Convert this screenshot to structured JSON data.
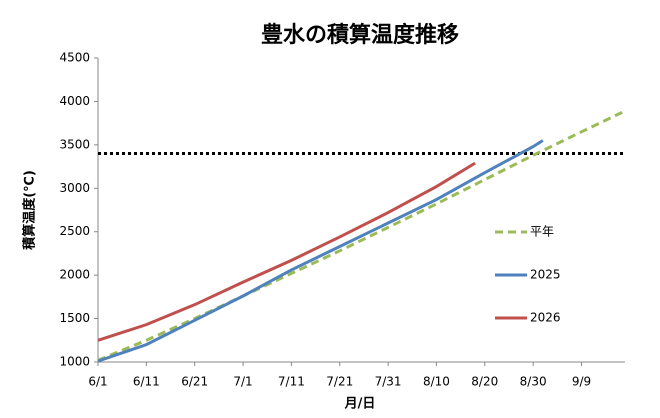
{
  "chart_data": {
    "type": "line",
    "title": "豊水の積算温度推移",
    "y_label": "積算温度(℃)",
    "x_label": "月/日",
    "xlim": [
      0,
      109
    ],
    "ylim": [
      1000,
      4500
    ],
    "xticks": [
      {
        "value": 0,
        "label": "6/1"
      },
      {
        "value": 10,
        "label": "6/11"
      },
      {
        "value": 20,
        "label": "6/21"
      },
      {
        "value": 30,
        "label": "7/1"
      },
      {
        "value": 40,
        "label": "7/11"
      },
      {
        "value": 50,
        "label": "7/21"
      },
      {
        "value": 60,
        "label": "7/31"
      },
      {
        "value": 70,
        "label": "8/10"
      },
      {
        "value": 80,
        "label": "8/20"
      },
      {
        "value": 90,
        "label": "8/30"
      },
      {
        "value": 100,
        "label": "9/9"
      }
    ],
    "yticks": [
      1000,
      1500,
      2000,
      2500,
      3000,
      3500,
      4000,
      4500
    ],
    "reference_line": 3400,
    "legend": "right",
    "series": [
      {
        "name": "平年",
        "color": "#9bbb59",
        "line_style": "dashed",
        "x": [
          0,
          10,
          20,
          30,
          40,
          50,
          60,
          70,
          80,
          90,
          100,
          109
        ],
        "values": [
          1020,
          1250,
          1500,
          1760,
          2020,
          2280,
          2550,
          2820,
          3100,
          3380,
          3650,
          3890
        ]
      },
      {
        "name": "2025",
        "color": "#4f81bd",
        "line_style": "solid",
        "x": [
          0,
          10,
          20,
          30,
          40,
          50,
          60,
          70,
          80,
          90,
          92
        ],
        "values": [
          1010,
          1200,
          1480,
          1760,
          2060,
          2330,
          2600,
          2870,
          3180,
          3480,
          3550
        ]
      },
      {
        "name": "2026",
        "color": "#c0504d",
        "line_style": "solid",
        "x": [
          0,
          10,
          20,
          30,
          40,
          50,
          60,
          70,
          78
        ],
        "values": [
          1250,
          1430,
          1660,
          1920,
          2170,
          2440,
          2720,
          3020,
          3290
        ]
      }
    ]
  }
}
